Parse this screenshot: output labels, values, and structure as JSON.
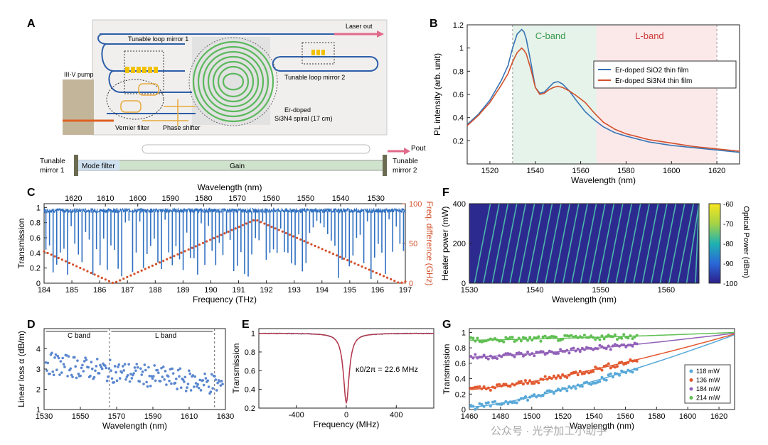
{
  "panels": {
    "A": {
      "letter": "A",
      "labels": {
        "laser_out": "Laser out",
        "loop_mirror_1": "Tunable loop mirror 1",
        "loop_mirror_2": "Tunable loop mirror 2",
        "pump": "III-V pump",
        "vernier": "Vernier filter",
        "phase": "Phase shifter",
        "erdoped": "Er-doped",
        "spiral": "Si3N4 spiral (17 cm)",
        "tunable_mirror_1a": "Tunable",
        "tunable_mirror_1b": "mirror 1",
        "tunable_mirror_2a": "Tunable",
        "tunable_mirror_2b": "mirror 2",
        "mode_filter": "Mode filter",
        "gain": "Gain",
        "pout": "Pout"
      }
    },
    "B": {
      "letter": "B",
      "band_c": "C-band",
      "band_l": "L-band",
      "band_c_color": "#e6f3ea",
      "band_l_color": "#fbe9ea"
    },
    "C": {
      "letter": "C",
      "top_axis_label": "Wavelength (nm)",
      "top_ticks": [
        "1620",
        "1610",
        "1600",
        "1590",
        "1580",
        "1570",
        "1560",
        "1550",
        "1540",
        "1530"
      ]
    },
    "D": {
      "letter": "D",
      "band_c": "C band",
      "band_l": "L band"
    },
    "E": {
      "letter": "E",
      "annotation": "κ0/2π = 22.6 MHz"
    },
    "F": {
      "letter": "F",
      "colorbar_label": "Optical Power (dBm)",
      "colorbar_ticks": [
        "-60",
        "-70",
        "-80",
        "-90",
        "-100"
      ]
    },
    "G": {
      "letter": "G"
    }
  },
  "watermark": "公众号 · 光学加工小助手",
  "chart_data": [
    {
      "id": "B",
      "type": "line",
      "xlabel": "Wavelength (nm)",
      "ylabel": "PL intensity (arb. unit)",
      "xlim": [
        1510,
        1630
      ],
      "ylim": [
        0,
        1.2
      ],
      "xticks": [
        1520,
        1540,
        1560,
        1580,
        1600,
        1620
      ],
      "yticks": [
        0.2,
        0.4,
        0.6,
        0.8,
        1,
        1.2
      ],
      "series": [
        {
          "name": "Er-doped SiO2 thin film",
          "color": "#3674b5",
          "x": [
            1510,
            1515,
            1520,
            1525,
            1528,
            1530,
            1532,
            1534,
            1535,
            1536,
            1538,
            1540,
            1542,
            1544,
            1546,
            1548,
            1550,
            1552,
            1555,
            1558,
            1562,
            1566,
            1570,
            1575,
            1580,
            1590,
            1600,
            1610,
            1620,
            1630
          ],
          "y": [
            0.34,
            0.43,
            0.55,
            0.72,
            0.85,
            1.0,
            1.12,
            1.16,
            1.14,
            1.08,
            0.88,
            0.66,
            0.61,
            0.62,
            0.66,
            0.7,
            0.71,
            0.69,
            0.63,
            0.55,
            0.45,
            0.38,
            0.32,
            0.27,
            0.24,
            0.19,
            0.16,
            0.14,
            0.12,
            0.1
          ]
        },
        {
          "name": "Er-doped Si3N4 thin film",
          "color": "#d2502b",
          "x": [
            1510,
            1515,
            1520,
            1525,
            1528,
            1530,
            1532,
            1534,
            1535,
            1536,
            1538,
            1540,
            1542,
            1544,
            1546,
            1548,
            1550,
            1552,
            1555,
            1558,
            1562,
            1566,
            1570,
            1575,
            1580,
            1590,
            1600,
            1610,
            1620,
            1630
          ],
          "y": [
            0.33,
            0.42,
            0.53,
            0.68,
            0.78,
            0.88,
            0.96,
            1.0,
            0.98,
            0.95,
            0.82,
            0.66,
            0.6,
            0.61,
            0.64,
            0.66,
            0.67,
            0.66,
            0.63,
            0.59,
            0.53,
            0.44,
            0.36,
            0.3,
            0.26,
            0.21,
            0.18,
            0.15,
            0.13,
            0.11
          ]
        }
      ],
      "legend": [
        "Er-doped SiO2 thin film",
        "Er-doped Si3N4 thin film"
      ],
      "bands": [
        {
          "name": "C-band",
          "from": 1530,
          "to": 1567
        },
        {
          "name": "L-band",
          "from": 1567,
          "to": 1620
        }
      ]
    },
    {
      "id": "C",
      "type": "line",
      "xlabel": "Frequency (THz)",
      "ylabel": "Transmission",
      "y2label": "Freq. difference (GHz)",
      "xlim": [
        184,
        197
      ],
      "ylim": [
        0,
        1.05
      ],
      "y2lim": [
        0,
        100
      ],
      "xticks": [
        184,
        185,
        186,
        187,
        188,
        189,
        190,
        191,
        192,
        193,
        194,
        195,
        196,
        197
      ],
      "yticks": [
        0,
        0.2,
        0.4,
        0.6,
        0.8,
        1
      ],
      "y2ticks": [
        0,
        50,
        100
      ],
      "resonance_count": 100,
      "resonance_depth_range": [
        0.05,
        0.85
      ],
      "freq_diff_points": {
        "x": [
          184,
          186.5,
          191.6,
          196.8,
          197
        ],
        "y": [
          40,
          0,
          80,
          0,
          2
        ]
      },
      "colors": {
        "transmission": "#2e6fc0",
        "freqdiff": "#d2502b"
      }
    },
    {
      "id": "D",
      "type": "scatter",
      "xlabel": "Wavelength (nm)",
      "ylabel": "Linear loss α (dB/m)",
      "xlim": [
        1530,
        1630
      ],
      "ylim": [
        1,
        5
      ],
      "xticks": [
        1530,
        1550,
        1570,
        1590,
        1610,
        1630
      ],
      "yticks": [
        1,
        2,
        3,
        4
      ],
      "band_edges": [
        1566,
        1624
      ],
      "n_points": 180,
      "trend": {
        "start": 3.3,
        "end": 2.2,
        "spread": 0.55
      },
      "color": "#5a86cf"
    },
    {
      "id": "E",
      "type": "line",
      "xlabel": "Frequency (MHz)",
      "ylabel": "Transmission",
      "xlim": [
        -700,
        700
      ],
      "ylim": [
        0.2,
        1.05
      ],
      "xticks": [
        -400,
        0,
        400
      ],
      "yticks": [
        0.2,
        0.4,
        0.6,
        0.8,
        1
      ],
      "lorentzian": {
        "center": 0,
        "min": 0.26,
        "baseline": 1.0,
        "halfwidth": 28
      },
      "colors": {
        "data": "#3674b5",
        "fit": "#b3364a"
      }
    },
    {
      "id": "F",
      "type": "heatmap",
      "xlabel": "Wavelength (nm)",
      "ylabel": "Heater power (mW)",
      "xlim": [
        1530,
        1565
      ],
      "ylim": [
        0,
        400
      ],
      "xticks": [
        1530,
        1540,
        1550,
        1560
      ],
      "yticks": [
        0,
        200,
        400
      ],
      "colorbar": {
        "min": -100,
        "max": -60
      },
      "n_lines": 26,
      "line_slope_nm_per_400mW": 2.4
    },
    {
      "id": "G",
      "type": "scatter",
      "xlabel": "Wavelength (nm)",
      "ylabel": "Transmission",
      "xlim": [
        1460,
        1630
      ],
      "ylim": [
        0,
        1.05
      ],
      "xticks": [
        1460,
        1480,
        1500,
        1520,
        1540,
        1560,
        1580,
        1600,
        1620
      ],
      "yticks": [
        0,
        0.2,
        0.4,
        0.6,
        0.8,
        1
      ],
      "data_xmax": 1568,
      "series": [
        {
          "name": "118 mW",
          "color": "#57a8d8",
          "start": 0.03,
          "mid": 0.5,
          "fit_end": 0.97
        },
        {
          "name": "136 mW",
          "color": "#e2582f",
          "start": 0.26,
          "mid": 0.66,
          "fit_end": 0.98
        },
        {
          "name": "184 mW",
          "color": "#9261b8",
          "start": 0.68,
          "mid": 0.84,
          "fit_end": 0.99
        },
        {
          "name": "214 mW",
          "color": "#5fbf52",
          "start": 0.9,
          "mid": 0.97,
          "fit_end": 1.0
        }
      ]
    }
  ]
}
